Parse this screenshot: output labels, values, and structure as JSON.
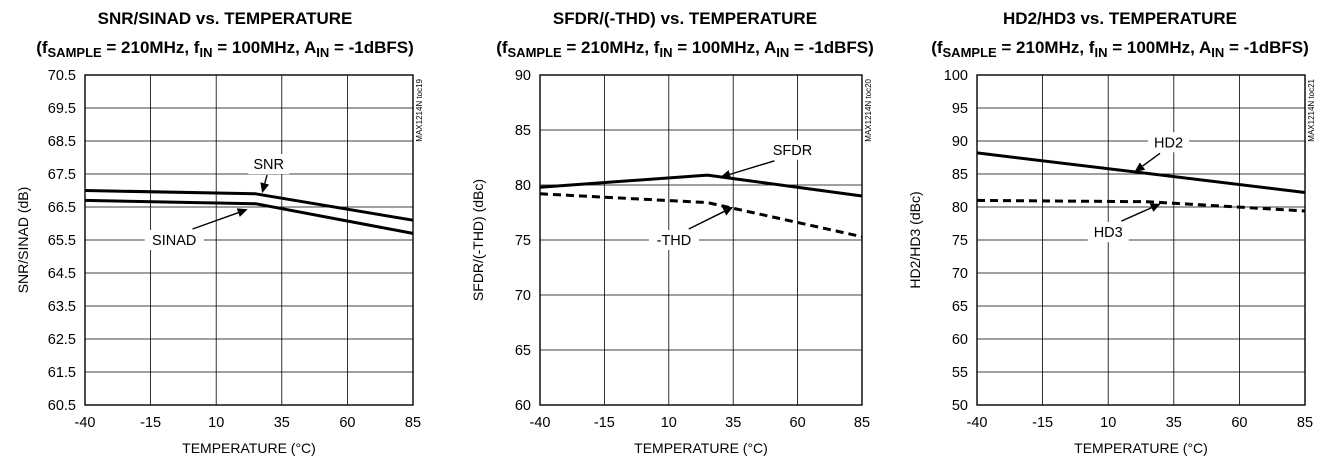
{
  "chart_data": [
    {
      "type": "line",
      "title": "SNR/SINAD vs. TEMPERATURE",
      "subtitle": {
        "open": "(f",
        "s1": "SAMPLE",
        "m1": " = 210MHz, f",
        "s2": "IN",
        "m2": " = 100MHz, A",
        "s3": "IN",
        "end": " = -1dBFS)"
      },
      "xlabel": "TEMPERATURE (°C)",
      "ylabel": "SNR/SINAD (dB)",
      "code": "MAX1214N toc19",
      "xlim": [
        -40,
        85
      ],
      "ylim": [
        60.5,
        70.5
      ],
      "xticks": [
        "-40",
        "-15",
        "10",
        "35",
        "60",
        "85"
      ],
      "yticks": [
        "70.5",
        "69.5",
        "68.5",
        "67.5",
        "66.5",
        "65.5",
        "64.5",
        "63.5",
        "62.5",
        "61.5",
        "60.5"
      ],
      "grid": true,
      "series": [
        {
          "name": "SNR",
          "style": "solid",
          "x": [
            -40,
            25,
            85
          ],
          "y": [
            67.0,
            66.9,
            66.1
          ]
        },
        {
          "name": "SINAD",
          "style": "solid",
          "x": [
            -40,
            25,
            85
          ],
          "y": [
            66.7,
            66.6,
            65.7
          ]
        }
      ],
      "annotations": [
        {
          "text": "SNR",
          "x": 30,
          "y": 67.8,
          "tx": 27.5,
          "ty": 66.92
        },
        {
          "text": "SINAD",
          "x": -6,
          "y": 65.5,
          "tx": 22,
          "ty": 66.43
        }
      ]
    },
    {
      "type": "line",
      "title": "SFDR/(-THD) vs. TEMPERATURE",
      "subtitle": {
        "open": "(f",
        "s1": "SAMPLE",
        "m1": " = 210MHz, f",
        "s2": "IN",
        "m2": " = 100MHz, A",
        "s3": "IN",
        "end": " = -1dBFS)"
      },
      "xlabel": "TEMPERATURE (°C)",
      "ylabel": "SFDR/(-THD) (dBc)",
      "code": "MAX1214N toc20",
      "xlim": [
        -40,
        85
      ],
      "ylim": [
        60,
        90
      ],
      "xticks": [
        "-40",
        "-15",
        "10",
        "35",
        "60",
        "85"
      ],
      "yticks": [
        "90",
        "85",
        "80",
        "75",
        "70",
        "65",
        "60"
      ],
      "grid": true,
      "series": [
        {
          "name": "SFDR",
          "style": "solid",
          "x": [
            -40,
            25,
            85
          ],
          "y": [
            79.8,
            80.9,
            79.0
          ]
        },
        {
          "name": "-THD",
          "style": "dashed",
          "x": [
            -40,
            25,
            85
          ],
          "y": [
            79.2,
            78.4,
            75.3
          ]
        }
      ],
      "annotations": [
        {
          "text": "SFDR",
          "x": 58,
          "y": 83.2,
          "tx": 30,
          "ty": 80.7
        },
        {
          "text": "-THD",
          "x": 12,
          "y": 75.0,
          "tx": 35,
          "ty": 78.0
        }
      ]
    },
    {
      "type": "line",
      "title": "HD2/HD3 vs. TEMPERATURE",
      "subtitle": {
        "open": "(f",
        "s1": "SAMPLE",
        "m1": " = 210MHz, f",
        "s2": "IN",
        "m2": " = 100MHz, A",
        "s3": "IN",
        "end": " = -1dBFS)"
      },
      "xlabel": "TEMPERATURE (°C)",
      "ylabel": "HD2/HD3 (dBc)",
      "code": "MAX1214N toc21",
      "xlim": [
        -40,
        85
      ],
      "ylim": [
        50,
        100
      ],
      "xticks": [
        "-40",
        "-15",
        "10",
        "35",
        "60",
        "85"
      ],
      "yticks": [
        "100",
        "95",
        "90",
        "85",
        "80",
        "75",
        "70",
        "65",
        "60",
        "55",
        "50"
      ],
      "grid": true,
      "series": [
        {
          "name": "HD2",
          "style": "solid",
          "x": [
            -40,
            85
          ],
          "y": [
            88.2,
            82.2
          ]
        },
        {
          "name": "HD3",
          "style": "dashed",
          "x": [
            -40,
            25,
            85
          ],
          "y": [
            81.0,
            80.8,
            79.4
          ]
        }
      ],
      "annotations": [
        {
          "text": "HD2",
          "x": 33,
          "y": 89.8,
          "tx": 20,
          "ty": 85.3
        },
        {
          "text": "HD3",
          "x": 10,
          "y": 76.2,
          "tx": 30,
          "ty": 80.5
        }
      ]
    }
  ]
}
